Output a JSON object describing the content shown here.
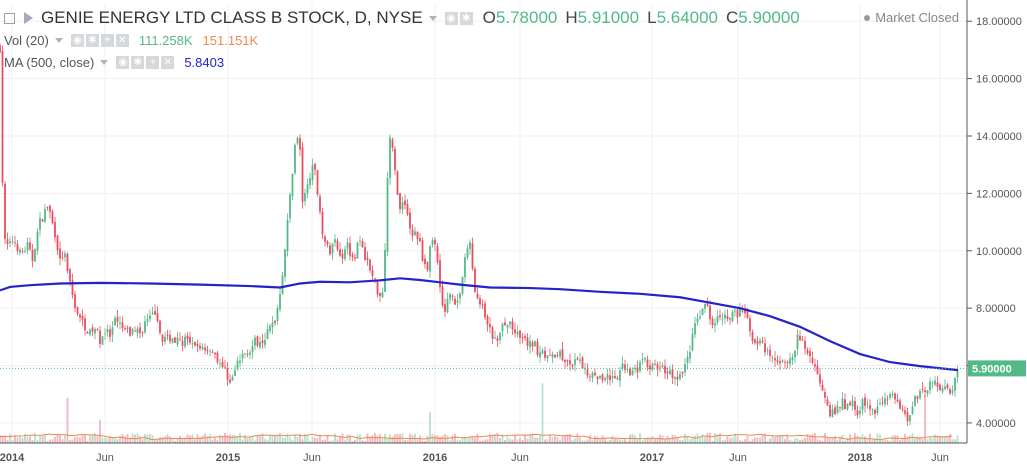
{
  "legend": {
    "symbol": "GENIE ENERGY LTD CLASS B STOCK, D, NYSE",
    "o_label": "O",
    "o": "5.78000",
    "h_label": "H",
    "h": "5.91000",
    "l_label": "L",
    "l": "5.64000",
    "c_label": "C",
    "c": "5.90000",
    "vol_label": "Vol (20)",
    "vol": "111.258K",
    "vol_ma": "151.151K",
    "ma_label": "MA (500, close)",
    "ma": "5.8403"
  },
  "status": "Market Closed",
  "colors": {
    "up": "#53b987",
    "down": "#eb4d5c",
    "ma": "#2323c8",
    "vol_ma": "#eb8a4e",
    "last": "#53b987"
  },
  "chart_data": {
    "type": "candlestick",
    "title": "GENIE ENERGY LTD CLASS B STOCK, D, NYSE",
    "ylim": [
      3.3,
      18.6
    ],
    "y_ticks": [
      "4.00000",
      "6.00000",
      "8.00000",
      "10.00000",
      "12.00000",
      "14.00000",
      "16.00000",
      "18.00000"
    ],
    "x_ticks": [
      "2014",
      "Jun",
      "2015",
      "Jun",
      "2016",
      "Jun",
      "2017",
      "Jun",
      "2018",
      "Jun"
    ],
    "last_price": "5.90000",
    "close_path": [
      [
        0,
        17.1
      ],
      [
        3,
        11.5
      ],
      [
        5,
        10.3
      ],
      [
        9,
        10.1
      ],
      [
        13,
        10.4
      ],
      [
        17,
        10.2
      ],
      [
        20,
        9.9
      ],
      [
        24,
        10.0
      ],
      [
        28,
        10.2
      ],
      [
        32,
        9.6
      ],
      [
        36,
        10.4
      ],
      [
        40,
        11.0
      ],
      [
        44,
        11.3
      ],
      [
        48,
        11.6
      ],
      [
        52,
        11.0
      ],
      [
        56,
        10.5
      ],
      [
        60,
        9.6
      ],
      [
        64,
        10.0
      ],
      [
        68,
        9.1
      ],
      [
        72,
        8.5
      ],
      [
        76,
        8.0
      ],
      [
        80,
        7.6
      ],
      [
        85,
        7.4
      ],
      [
        90,
        7.1
      ],
      [
        95,
        7.3
      ],
      [
        100,
        6.9
      ],
      [
        105,
        7.2
      ],
      [
        110,
        7.0
      ],
      [
        115,
        7.5
      ],
      [
        120,
        7.4
      ],
      [
        125,
        7.2
      ],
      [
        130,
        7.1
      ],
      [
        135,
        7.3
      ],
      [
        140,
        7.1
      ],
      [
        145,
        7.5
      ],
      [
        150,
        7.6
      ],
      [
        155,
        7.9
      ],
      [
        158,
        7.3
      ],
      [
        162,
        7.0
      ],
      [
        166,
        6.9
      ],
      [
        170,
        7.0
      ],
      [
        175,
        6.9
      ],
      [
        180,
        6.8
      ],
      [
        185,
        6.9
      ],
      [
        190,
        6.7
      ],
      [
        195,
        6.6
      ],
      [
        200,
        6.7
      ],
      [
        205,
        6.6
      ],
      [
        210,
        6.6
      ],
      [
        215,
        6.4
      ],
      [
        220,
        6.1
      ],
      [
        225,
        5.8
      ],
      [
        230,
        5.5
      ],
      [
        233,
        5.6
      ],
      [
        238,
        6.1
      ],
      [
        242,
        6.3
      ],
      [
        246,
        6.5
      ],
      [
        250,
        6.6
      ],
      [
        255,
        6.8
      ],
      [
        260,
        6.9
      ],
      [
        265,
        7.0
      ],
      [
        270,
        7.3
      ],
      [
        275,
        7.6
      ],
      [
        278,
        8.1
      ],
      [
        282,
        9.1
      ],
      [
        286,
        10.4
      ],
      [
        290,
        11.9
      ],
      [
        293,
        13.0
      ],
      [
        296,
        14.1
      ],
      [
        300,
        13.5
      ],
      [
        303,
        11.4
      ],
      [
        306,
        12.1
      ],
      [
        310,
        12.7
      ],
      [
        314,
        12.9
      ],
      [
        318,
        12.0
      ],
      [
        322,
        10.8
      ],
      [
        326,
        10.2
      ],
      [
        330,
        9.9
      ],
      [
        334,
        10.4
      ],
      [
        338,
        10.1
      ],
      [
        342,
        9.8
      ],
      [
        346,
        10.3
      ],
      [
        350,
        10.0
      ],
      [
        354,
        9.7
      ],
      [
        358,
        10.5
      ],
      [
        362,
        10.0
      ],
      [
        366,
        9.8
      ],
      [
        370,
        9.3
      ],
      [
        374,
        9.0
      ],
      [
        378,
        8.6
      ],
      [
        382,
        8.3
      ],
      [
        386,
        10.8
      ],
      [
        389,
        14.2
      ],
      [
        392,
        13.6
      ],
      [
        396,
        12.5
      ],
      [
        400,
        11.4
      ],
      [
        404,
        11.9
      ],
      [
        408,
        11.2
      ],
      [
        412,
        10.4
      ],
      [
        416,
        10.7
      ],
      [
        420,
        10.2
      ],
      [
        424,
        9.6
      ],
      [
        428,
        9.4
      ],
      [
        432,
        10.6
      ],
      [
        436,
        10.0
      ],
      [
        440,
        8.9
      ],
      [
        444,
        7.6
      ],
      [
        448,
        8.4
      ],
      [
        452,
        8.6
      ],
      [
        456,
        8.1
      ],
      [
        460,
        8.5
      ],
      [
        464,
        9.5
      ],
      [
        468,
        10.1
      ],
      [
        471,
        10.4
      ],
      [
        474,
        8.6
      ],
      [
        478,
        8.2
      ],
      [
        482,
        8.0
      ],
      [
        486,
        7.6
      ],
      [
        490,
        7.2
      ],
      [
        494,
        6.9
      ],
      [
        498,
        6.8
      ],
      [
        502,
        7.4
      ],
      [
        506,
        7.3
      ],
      [
        510,
        7.5
      ],
      [
        514,
        7.2
      ],
      [
        518,
        7.0
      ],
      [
        522,
        6.9
      ],
      [
        526,
        6.8
      ],
      [
        530,
        6.7
      ],
      [
        534,
        6.8
      ],
      [
        538,
        6.5
      ],
      [
        542,
        6.6
      ],
      [
        546,
        6.3
      ],
      [
        550,
        6.2
      ],
      [
        554,
        6.4
      ],
      [
        558,
        6.5
      ],
      [
        562,
        6.3
      ],
      [
        566,
        6.0
      ],
      [
        570,
        6.1
      ],
      [
        574,
        6.0
      ],
      [
        578,
        6.2
      ],
      [
        582,
        6.0
      ],
      [
        586,
        5.8
      ],
      [
        590,
        5.7
      ],
      [
        594,
        5.9
      ],
      [
        598,
        5.6
      ],
      [
        602,
        5.5
      ],
      [
        606,
        5.7
      ],
      [
        610,
        5.6
      ],
      [
        614,
        5.4
      ],
      [
        618,
        5.6
      ],
      [
        622,
        5.9
      ],
      [
        626,
        6.0
      ],
      [
        630,
        5.8
      ],
      [
        634,
        6.0
      ],
      [
        638,
        5.9
      ],
      [
        642,
        6.2
      ],
      [
        646,
        6.1
      ],
      [
        650,
        5.9
      ],
      [
        654,
        6.0
      ],
      [
        658,
        5.8
      ],
      [
        662,
        6.0
      ],
      [
        666,
        5.7
      ],
      [
        670,
        5.8
      ],
      [
        674,
        5.6
      ],
      [
        678,
        5.5
      ],
      [
        682,
        5.7
      ],
      [
        686,
        6.2
      ],
      [
        690,
        6.6
      ],
      [
        694,
        7.2
      ],
      [
        698,
        7.8
      ],
      [
        702,
        7.9
      ],
      [
        706,
        8.2
      ],
      [
        710,
        7.7
      ],
      [
        714,
        7.5
      ],
      [
        718,
        7.9
      ],
      [
        722,
        7.8
      ],
      [
        726,
        7.7
      ],
      [
        730,
        7.6
      ],
      [
        734,
        7.9
      ],
      [
        738,
        7.7
      ],
      [
        742,
        8.0
      ],
      [
        746,
        7.7
      ],
      [
        750,
        7.2
      ],
      [
        754,
        6.9
      ],
      [
        758,
        6.8
      ],
      [
        762,
        6.7
      ],
      [
        766,
        6.4
      ],
      [
        770,
        6.3
      ],
      [
        774,
        6.2
      ],
      [
        778,
        6.0
      ],
      [
        782,
        6.3
      ],
      [
        786,
        6.2
      ],
      [
        790,
        6.1
      ],
      [
        794,
        6.4
      ],
      [
        798,
        7.0
      ],
      [
        802,
        6.8
      ],
      [
        806,
        6.6
      ],
      [
        810,
        6.3
      ],
      [
        814,
        6.1
      ],
      [
        818,
        5.6
      ],
      [
        822,
        5.3
      ],
      [
        826,
        4.9
      ],
      [
        830,
        4.4
      ],
      [
        834,
        4.3
      ],
      [
        838,
        4.5
      ],
      [
        842,
        4.7
      ],
      [
        846,
        4.6
      ],
      [
        850,
        4.6
      ],
      [
        854,
        4.7
      ],
      [
        858,
        4.4
      ],
      [
        862,
        4.7
      ],
      [
        866,
        4.6
      ],
      [
        870,
        4.5
      ],
      [
        874,
        4.4
      ],
      [
        878,
        4.6
      ],
      [
        882,
        4.8
      ],
      [
        886,
        5.0
      ],
      [
        890,
        4.9
      ],
      [
        894,
        4.8
      ],
      [
        898,
        4.7
      ],
      [
        902,
        4.6
      ],
      [
        906,
        4.1
      ],
      [
        910,
        4.3
      ],
      [
        914,
        4.9
      ],
      [
        918,
        5.0
      ],
      [
        922,
        5.2
      ],
      [
        926,
        5.0
      ],
      [
        930,
        5.4
      ],
      [
        934,
        5.6
      ],
      [
        938,
        5.3
      ],
      [
        942,
        5.1
      ],
      [
        946,
        5.2
      ],
      [
        950,
        5.0
      ],
      [
        954,
        5.4
      ],
      [
        958,
        5.9
      ]
    ],
    "ma_path": [
      [
        0,
        8.62
      ],
      [
        10,
        8.74
      ],
      [
        30,
        8.8
      ],
      [
        60,
        8.86
      ],
      [
        100,
        8.88
      ],
      [
        150,
        8.86
      ],
      [
        200,
        8.82
      ],
      [
        250,
        8.77
      ],
      [
        280,
        8.72
      ],
      [
        300,
        8.86
      ],
      [
        320,
        8.92
      ],
      [
        350,
        8.9
      ],
      [
        380,
        8.97
      ],
      [
        400,
        9.04
      ],
      [
        420,
        8.98
      ],
      [
        440,
        8.9
      ],
      [
        460,
        8.82
      ],
      [
        490,
        8.72
      ],
      [
        530,
        8.7
      ],
      [
        560,
        8.66
      ],
      [
        600,
        8.57
      ],
      [
        640,
        8.5
      ],
      [
        680,
        8.38
      ],
      [
        710,
        8.19
      ],
      [
        740,
        8.0
      ],
      [
        770,
        7.72
      ],
      [
        800,
        7.35
      ],
      [
        830,
        6.85
      ],
      [
        860,
        6.4
      ],
      [
        890,
        6.12
      ],
      [
        920,
        5.98
      ],
      [
        958,
        5.84
      ]
    ],
    "volume_ma_range": [
      151.151
    ]
  }
}
